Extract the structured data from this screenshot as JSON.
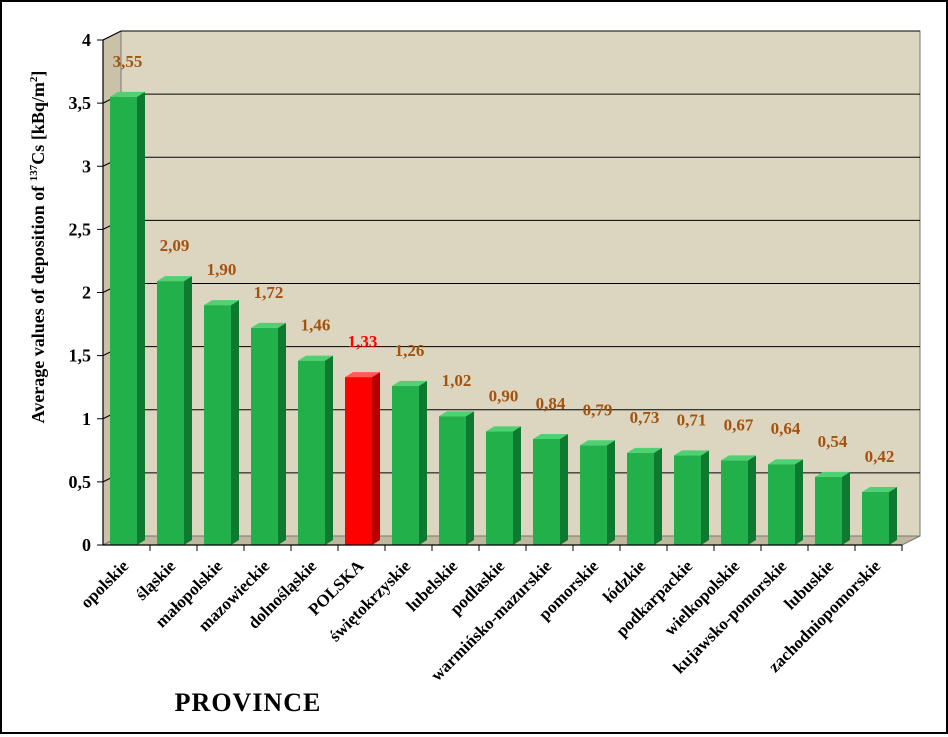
{
  "chart_data": {
    "type": "bar",
    "title": "",
    "xlabel": "PROVINCE",
    "ylabel": "Average values of deposition of 137Cs [kBq/m2]",
    "ylabel_parts": {
      "prefix": "Average values of deposition of ",
      "sup1": "137",
      "mid": "Cs [kBq/m",
      "sup2": "2",
      "suffix": "]"
    },
    "ylim": [
      0,
      4
    ],
    "yticks": [
      "0",
      "0,5",
      "1",
      "1,5",
      "2",
      "2,5",
      "3",
      "3,5",
      "4"
    ],
    "grid": true,
    "legend": "none",
    "categories": [
      "opolskie",
      "śląskie",
      "małopolskie",
      "mazowieckie",
      "dolnośląskie",
      "POLSKA",
      "świętokrzyskie",
      "lubelskie",
      "podlaskie",
      "warmińsko-mazurskie",
      "pomorskie",
      "łódzkie",
      "podkarpackie",
      "wielkopolskie",
      "kujawsko-pomorskie",
      "lubuskie",
      "zachodniopomorskie"
    ],
    "values": [
      3.55,
      2.09,
      1.9,
      1.72,
      1.46,
      1.33,
      1.26,
      1.02,
      0.9,
      0.84,
      0.79,
      0.73,
      0.71,
      0.67,
      0.64,
      0.54,
      0.42
    ],
    "data_labels": [
      "3,55",
      "2,09",
      "1,90",
      "1,72",
      "1,46",
      "1,33",
      "1,26",
      "1,02",
      "0,90",
      "0,84",
      "0,79",
      "0,73",
      "0,71",
      "0,67",
      "0,64",
      "0,54",
      "0,42"
    ],
    "highlight_category": "POLSKA",
    "colors": {
      "bar": "#22b04a",
      "bar_side": "#0d7a30",
      "bar_top": "#4fd072",
      "highlight": "#ff0000",
      "highlight_side": "#b80000",
      "highlight_top": "#ff5a5a",
      "label": "#a3520f",
      "highlight_label": "#ff0000",
      "plot_background": "#dcd6c0",
      "plot_wall_side": "#c9c2a8",
      "plot_floor": "#bfb89d",
      "grid": "#000000"
    }
  }
}
